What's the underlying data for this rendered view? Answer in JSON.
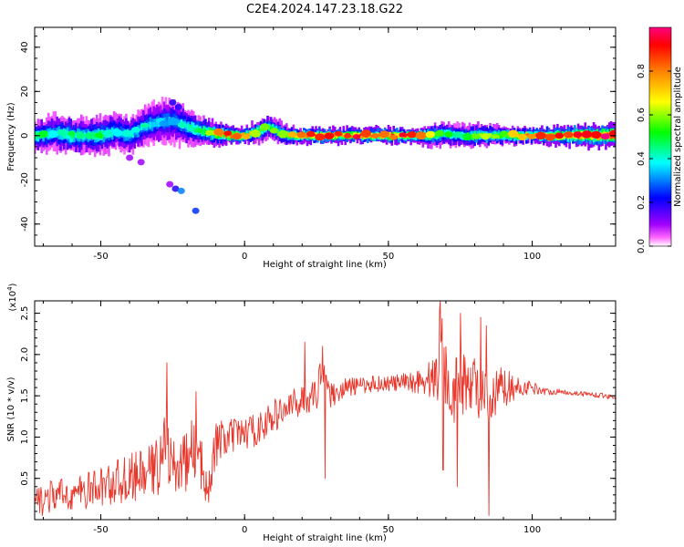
{
  "figure_title": "C2E4.2024.147.23.18.G22",
  "chart_data": [
    {
      "type": "heatmap",
      "title": "",
      "xlabel": "Height of straight line (km)",
      "ylabel": "Frequency (Hz)",
      "xlim": [
        -73,
        129
      ],
      "ylim": [
        -50,
        49
      ],
      "xticks": [
        -50,
        0,
        50,
        100
      ],
      "yticks": [
        -40,
        -20,
        0,
        20,
        40
      ],
      "colorbar": {
        "label": "Normalized spectral amplitude",
        "range": [
          0,
          1
        ],
        "ticks": [
          0.0,
          0.2,
          0.4,
          0.6,
          0.8
        ],
        "colormap": [
          "#ffffff",
          "#ff00ff",
          "#8000ff",
          "#0000ff",
          "#00ffff",
          "#00ff00",
          "#ffff00",
          "#ff8000",
          "#ff0000",
          "#ff007f"
        ]
      },
      "ridge": {
        "x": [
          -73,
          -65,
          -60,
          -55,
          -50,
          -45,
          -40,
          -35,
          -30,
          -25,
          -20,
          -15,
          -10,
          -5,
          0,
          5,
          8,
          10,
          15,
          20,
          30,
          40,
          50,
          60,
          65,
          70,
          75,
          80,
          90,
          100,
          110,
          120,
          129
        ],
        "y": [
          0,
          1,
          0,
          0,
          0,
          2,
          0,
          4,
          6,
          7,
          4,
          2,
          1,
          0,
          0,
          2,
          4,
          3,
          0,
          0,
          0,
          0,
          0,
          0,
          0,
          1,
          0,
          0,
          0,
          0,
          0,
          0,
          0
        ],
        "peak_amplitude": [
          0.5,
          0.4,
          0.5,
          0.4,
          0.5,
          0.4,
          0.4,
          0.4,
          0.35,
          0.35,
          0.45,
          0.5,
          0.7,
          0.9,
          0.85,
          0.6,
          0.5,
          0.55,
          0.6,
          0.9,
          0.9,
          0.9,
          0.9,
          0.85,
          0.6,
          0.5,
          0.45,
          0.6,
          0.6,
          0.85,
          0.9,
          0.95,
          0.95
        ],
        "width_hz": [
          4,
          5,
          5,
          5,
          5,
          5,
          5,
          5,
          6,
          6,
          5,
          4,
          3,
          2.5,
          2,
          3,
          3,
          3,
          2.5,
          2,
          2,
          2,
          2,
          2,
          3,
          3,
          3,
          3,
          2.5,
          2,
          2.5,
          3,
          3
        ]
      },
      "scattered_points": [
        {
          "x": -40,
          "y": -10,
          "amplitude": 0.1
        },
        {
          "x": -36,
          "y": -12,
          "amplitude": 0.1
        },
        {
          "x": -26,
          "y": -22,
          "amplitude": 0.1
        },
        {
          "x": -24,
          "y": -24,
          "amplitude": 0.2
        },
        {
          "x": -22,
          "y": -25,
          "amplitude": 0.3
        },
        {
          "x": -17,
          "y": -34,
          "amplitude": 0.25
        },
        {
          "x": -25,
          "y": 15,
          "amplitude": 0.2
        },
        {
          "x": -23,
          "y": 13,
          "amplitude": 0.2
        }
      ]
    },
    {
      "type": "line",
      "title": "",
      "xlabel": "Height of straight line (km)",
      "ylabel": "SNR (10 * v/v)",
      "y_multiplier": "(x10",
      "y_multiplier_exp": "4",
      "xlim": [
        -73,
        129
      ],
      "ylim": [
        0,
        2.65
      ],
      "xticks": [
        -50,
        0,
        50,
        100
      ],
      "yticks": [
        0.5,
        1.0,
        1.5,
        2.0,
        2.5
      ],
      "series_color": "#e8362b",
      "x": [
        -73,
        -70,
        -65,
        -60,
        -55,
        -50,
        -45,
        -40,
        -35,
        -30,
        -28,
        -25,
        -20,
        -18,
        -15,
        -12,
        -10,
        -5,
        0,
        5,
        10,
        15,
        20,
        25,
        27,
        30,
        35,
        40,
        45,
        50,
        55,
        60,
        65,
        67,
        68,
        70,
        72,
        75,
        78,
        80,
        83,
        85,
        88,
        90,
        95,
        100,
        105,
        110,
        115,
        120,
        125,
        129
      ],
      "y": [
        0.2,
        0.25,
        0.3,
        0.3,
        0.35,
        0.4,
        0.45,
        0.5,
        0.55,
        0.65,
        1.0,
        0.6,
        0.7,
        0.9,
        0.6,
        0.5,
        0.9,
        1.0,
        1.05,
        1.1,
        1.25,
        1.35,
        1.45,
        1.5,
        1.9,
        1.5,
        1.6,
        1.62,
        1.65,
        1.65,
        1.65,
        1.68,
        1.7,
        1.75,
        2.4,
        1.75,
        1.6,
        1.55,
        1.7,
        1.65,
        1.5,
        1.3,
        1.55,
        1.6,
        1.6,
        1.6,
        1.55,
        1.55,
        1.53,
        1.52,
        1.5,
        1.48
      ],
      "noise_amplitude": [
        0.2,
        0.2,
        0.2,
        0.2,
        0.22,
        0.25,
        0.28,
        0.3,
        0.3,
        0.35,
        0.4,
        0.35,
        0.35,
        0.35,
        0.35,
        0.3,
        0.3,
        0.22,
        0.2,
        0.2,
        0.2,
        0.2,
        0.18,
        0.18,
        0.2,
        0.15,
        0.12,
        0.1,
        0.1,
        0.1,
        0.12,
        0.15,
        0.25,
        0.5,
        0.5,
        0.45,
        0.4,
        0.45,
        0.35,
        0.35,
        0.35,
        0.3,
        0.3,
        0.25,
        0.12,
        0.08,
        0.04,
        0.03,
        0.03,
        0.03,
        0.03,
        0.03
      ],
      "spikes": [
        {
          "x": -27,
          "y": 1.9
        },
        {
          "x": -17,
          "y": 1.55
        },
        {
          "x": 20,
          "y": 1.55
        },
        {
          "x": 21,
          "y": 2.15
        },
        {
          "x": 27,
          "y": 2.1
        },
        {
          "x": 28,
          "y": 0.5
        },
        {
          "x": 68,
          "y": 2.65
        },
        {
          "x": 69,
          "y": 0.6
        },
        {
          "x": 75,
          "y": 2.5
        },
        {
          "x": 74,
          "y": 0.4
        },
        {
          "x": 82,
          "y": 2.45
        },
        {
          "x": 84,
          "y": 2.35
        },
        {
          "x": 85,
          "y": 0.05
        }
      ]
    }
  ]
}
